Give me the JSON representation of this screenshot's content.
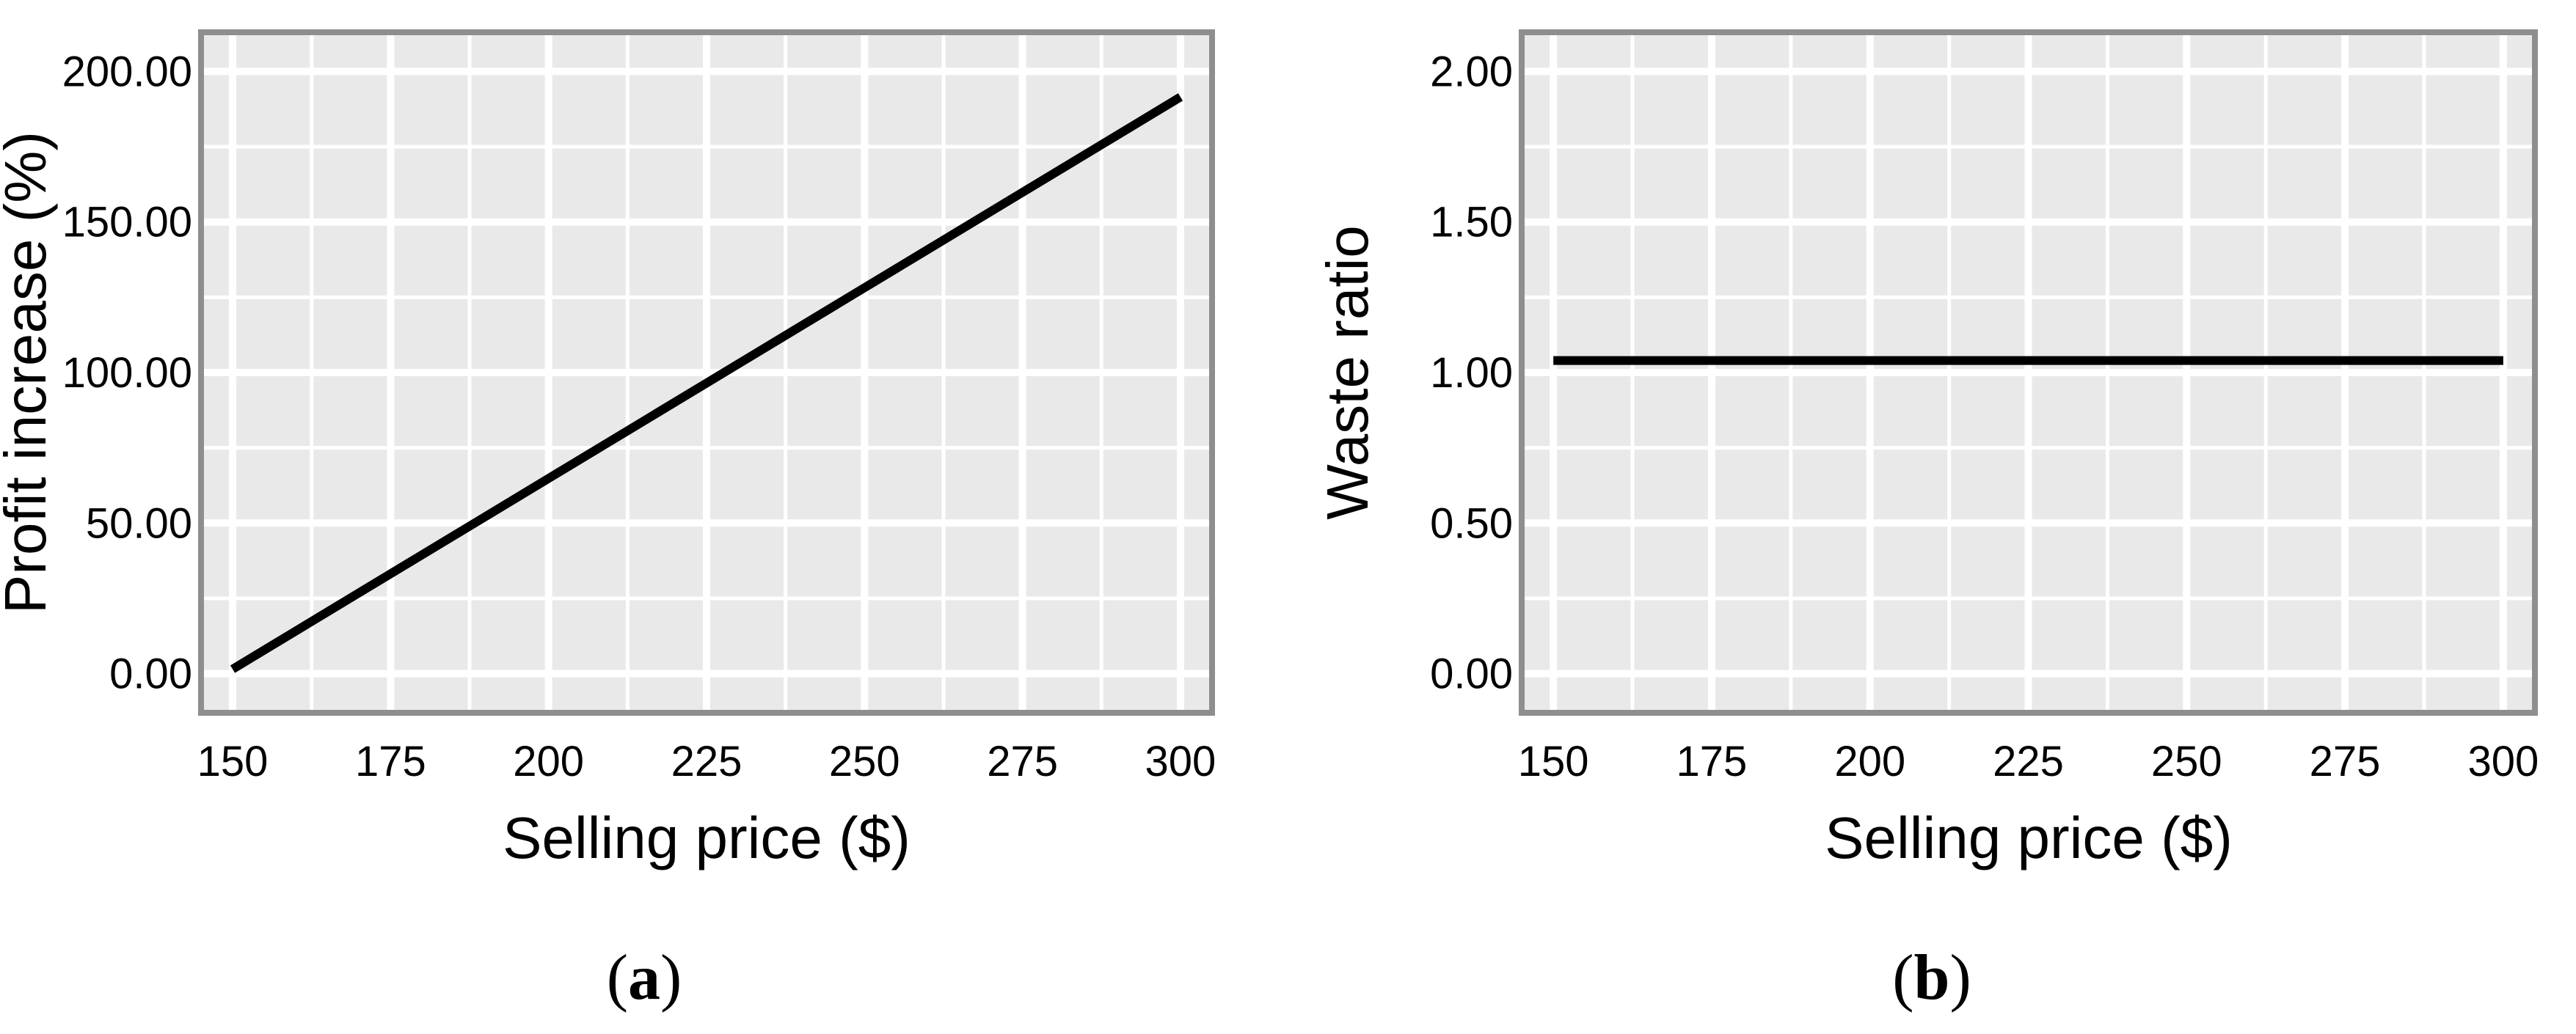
{
  "figure": {
    "background": "#ffffff",
    "panel_bg": "#e9e9e9",
    "grid_color": "#ffffff",
    "border_color": "#8e8e8e",
    "line_color": "#000000",
    "text_color": "#000000"
  },
  "chart_data": [
    {
      "id": "a",
      "type": "line",
      "xlabel": "Selling price ($)",
      "ylabel": "Profit increase (%)",
      "xlim": [
        145,
        305
      ],
      "ylim": [
        -13,
        213
      ],
      "x_ticks": [
        {
          "v": 150,
          "label": "150"
        },
        {
          "v": 175,
          "label": "175"
        },
        {
          "v": 200,
          "label": "200"
        },
        {
          "v": 225,
          "label": "225"
        },
        {
          "v": 250,
          "label": "250"
        },
        {
          "v": 275,
          "label": "275"
        },
        {
          "v": 300,
          "label": "300"
        }
      ],
      "y_ticks": [
        {
          "v": 0,
          "label": "0.00"
        },
        {
          "v": 50,
          "label": "50.00"
        },
        {
          "v": 100,
          "label": "100.00"
        },
        {
          "v": 150,
          "label": "150.00"
        },
        {
          "v": 200,
          "label": "200.00"
        }
      ],
      "x_minor": [
        162.5,
        187.5,
        212.5,
        237.5,
        262.5,
        287.5
      ],
      "y_minor": [
        25,
        75,
        125,
        175
      ],
      "grid": "major+minor white on gray panel",
      "series": [
        {
          "name": "profit-increase",
          "points": [
            [
              150,
              1.5
            ],
            [
              300,
              191.5
            ]
          ]
        }
      ],
      "caption": {
        "open": "(",
        "letter": "a",
        "close": ")"
      }
    },
    {
      "id": "b",
      "type": "line",
      "xlabel": "Selling price ($)",
      "ylabel": "Waste ratio",
      "xlim": [
        145,
        305
      ],
      "ylim": [
        -0.13,
        2.13
      ],
      "x_ticks": [
        {
          "v": 150,
          "label": "150"
        },
        {
          "v": 175,
          "label": "175"
        },
        {
          "v": 200,
          "label": "200"
        },
        {
          "v": 225,
          "label": "225"
        },
        {
          "v": 250,
          "label": "250"
        },
        {
          "v": 275,
          "label": "275"
        },
        {
          "v": 300,
          "label": "300"
        }
      ],
      "y_ticks": [
        {
          "v": 0,
          "label": "0.00"
        },
        {
          "v": 0.5,
          "label": "0.50"
        },
        {
          "v": 1,
          "label": "1.00"
        },
        {
          "v": 1.5,
          "label": "1.50"
        },
        {
          "v": 2,
          "label": "2.00"
        }
      ],
      "x_minor": [
        162.5,
        187.5,
        212.5,
        237.5,
        262.5,
        287.5
      ],
      "y_minor": [
        0.25,
        0.75,
        1.25,
        1.75
      ],
      "grid": "major+minor white on gray panel",
      "series": [
        {
          "name": "waste-ratio",
          "points": [
            [
              150,
              1.04
            ],
            [
              300,
              1.04
            ]
          ]
        }
      ],
      "caption": {
        "open": "(",
        "letter": "b",
        "close": ")"
      }
    }
  ]
}
